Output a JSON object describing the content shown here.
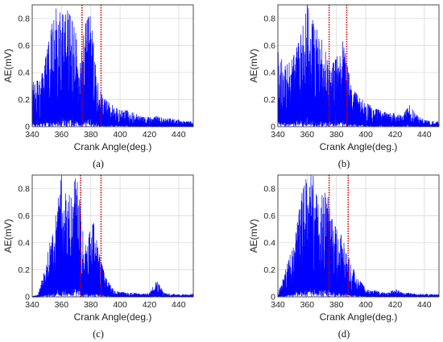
{
  "chart_data": [
    {
      "panel": "(a)",
      "type": "line",
      "xlabel": "Crank Angle(deg.)",
      "ylabel": "AE(mV)",
      "xlim": [
        340,
        450
      ],
      "ylim": [
        0,
        0.9
      ],
      "xticks": [
        "340",
        "360",
        "380",
        "400",
        "420",
        "440"
      ],
      "yticks": [
        "0",
        "0.2",
        "0.4",
        "0.6",
        "0.8"
      ],
      "grid": true,
      "series_color": "#0000ff",
      "marker_color": "#cc0000",
      "markers_x": [
        374,
        387
      ],
      "envelope": {
        "x": [
          340,
          345,
          350,
          355,
          358,
          362,
          366,
          370,
          373,
          376,
          380,
          384,
          388,
          392,
          396,
          400,
          405,
          410,
          415,
          420,
          425,
          430,
          435,
          440,
          445,
          450
        ],
        "y": [
          0.38,
          0.32,
          0.55,
          0.85,
          0.9,
          0.9,
          0.82,
          0.7,
          0.5,
          0.75,
          0.85,
          0.35,
          0.22,
          0.18,
          0.15,
          0.12,
          0.12,
          0.1,
          0.08,
          0.07,
          0.08,
          0.06,
          0.06,
          0.05,
          0.04,
          0.04
        ]
      }
    },
    {
      "panel": "(b)",
      "type": "line",
      "xlabel": "Crank Angle(deg.)",
      "ylabel": "AE(mV)",
      "xlim": [
        340,
        450
      ],
      "ylim": [
        0,
        0.9
      ],
      "xticks": [
        "340",
        "360",
        "380",
        "400",
        "420",
        "440"
      ],
      "yticks": [
        "0",
        "0.2",
        "0.4",
        "0.6",
        "0.8"
      ],
      "grid": true,
      "series_color": "#0000ff",
      "marker_color": "#cc0000",
      "markers_x": [
        375,
        387
      ],
      "envelope": {
        "x": [
          340,
          345,
          350,
          355,
          360,
          365,
          370,
          373,
          376,
          380,
          384,
          386,
          390,
          395,
          400,
          405,
          410,
          415,
          420,
          425,
          430,
          435,
          440,
          445,
          450
        ],
        "y": [
          0.55,
          0.45,
          0.5,
          0.65,
          0.9,
          0.75,
          0.65,
          0.55,
          0.45,
          0.5,
          0.65,
          0.55,
          0.3,
          0.22,
          0.18,
          0.14,
          0.12,
          0.1,
          0.1,
          0.08,
          0.16,
          0.08,
          0.05,
          0.04,
          0.04
        ]
      }
    },
    {
      "panel": "(c)",
      "type": "line",
      "xlabel": "Crank Angle(deg.)",
      "ylabel": "AE(mV)",
      "xlim": [
        340,
        450
      ],
      "ylim": [
        0,
        0.9
      ],
      "xticks": [
        "340",
        "360",
        "380",
        "400",
        "420",
        "440"
      ],
      "yticks": [
        "0",
        "0.2",
        "0.4",
        "0.6",
        "0.8"
      ],
      "grid": true,
      "series_color": "#0000ff",
      "marker_color": "#cc0000",
      "markers_x": [
        373,
        387
      ],
      "envelope": {
        "x": [
          340,
          344,
          348,
          352,
          356,
          360,
          364,
          368,
          371,
          374,
          378,
          382,
          386,
          390,
          395,
          400,
          405,
          410,
          415,
          420,
          425,
          430,
          435,
          440,
          445,
          450
        ],
        "y": [
          0.0,
          0.02,
          0.18,
          0.4,
          0.6,
          0.9,
          0.7,
          0.85,
          0.9,
          0.5,
          0.45,
          0.55,
          0.3,
          0.15,
          0.06,
          0.04,
          0.03,
          0.03,
          0.02,
          0.03,
          0.12,
          0.03,
          0.02,
          0.02,
          0.02,
          0.02
        ]
      }
    },
    {
      "panel": "(d)",
      "type": "line",
      "xlabel": "Crank Angle(deg.)",
      "ylabel": "AE(mV)",
      "xlim": [
        340,
        450
      ],
      "ylim": [
        0,
        0.9
      ],
      "xticks": [
        "340",
        "360",
        "380",
        "400",
        "420",
        "440"
      ],
      "yticks": [
        "0",
        "0.2",
        "0.4",
        "0.6",
        "0.8"
      ],
      "grid": true,
      "series_color": "#0000ff",
      "marker_color": "#cc0000",
      "markers_x": [
        375,
        388
      ],
      "envelope": {
        "x": [
          340,
          344,
          348,
          352,
          356,
          360,
          364,
          368,
          372,
          376,
          380,
          384,
          388,
          392,
          396,
          400,
          405,
          410,
          415,
          420,
          425,
          430,
          435,
          440,
          445,
          450
        ],
        "y": [
          0.02,
          0.15,
          0.3,
          0.45,
          0.75,
          0.9,
          0.9,
          0.7,
          0.9,
          0.6,
          0.5,
          0.45,
          0.3,
          0.2,
          0.12,
          0.06,
          0.05,
          0.04,
          0.03,
          0.06,
          0.03,
          0.03,
          0.02,
          0.02,
          0.02,
          0.02
        ]
      }
    }
  ]
}
